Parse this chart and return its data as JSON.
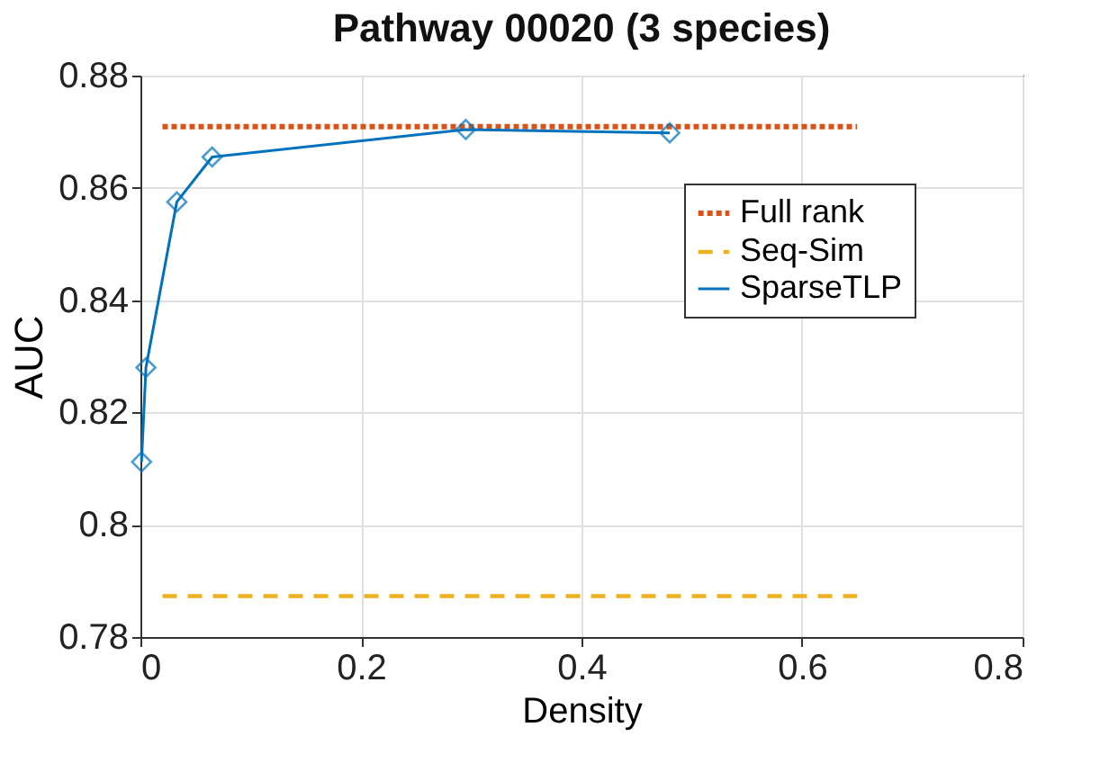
{
  "chart_data": {
    "type": "line",
    "title": "Pathway 00020 (3 species)",
    "xlabel": "Density",
    "ylabel": "AUC",
    "xlim": [
      0,
      0.8
    ],
    "xticks": [
      0,
      0.2,
      0.4,
      0.6,
      0.8
    ],
    "ylim": [
      0.78,
      0.88
    ],
    "yticks": [
      0.78,
      0.8,
      0.82,
      0.84,
      0.86,
      0.88
    ],
    "grid": true,
    "legend": "top right",
    "series": [
      {
        "name": "Full rank",
        "color": "#d95319",
        "line_style": "dotted",
        "marker": "none",
        "x": [
          0.02,
          0.65
        ],
        "values": [
          0.8709,
          0.8709
        ]
      },
      {
        "name": "Seq-Sim",
        "color": "#edb120",
        "line_style": "dashed",
        "marker": "none",
        "x": [
          0.02,
          0.65
        ],
        "values": [
          0.7873,
          0.7873
        ]
      },
      {
        "name": "SparseTLP",
        "color": "#0072bd",
        "line_style": "solid",
        "marker": "diamond",
        "x": [
          0.001,
          0.005,
          0.033,
          0.065,
          0.295,
          0.48
        ],
        "values": [
          0.8112,
          0.828,
          0.8575,
          0.8655,
          0.8704,
          0.8698
        ]
      }
    ]
  }
}
